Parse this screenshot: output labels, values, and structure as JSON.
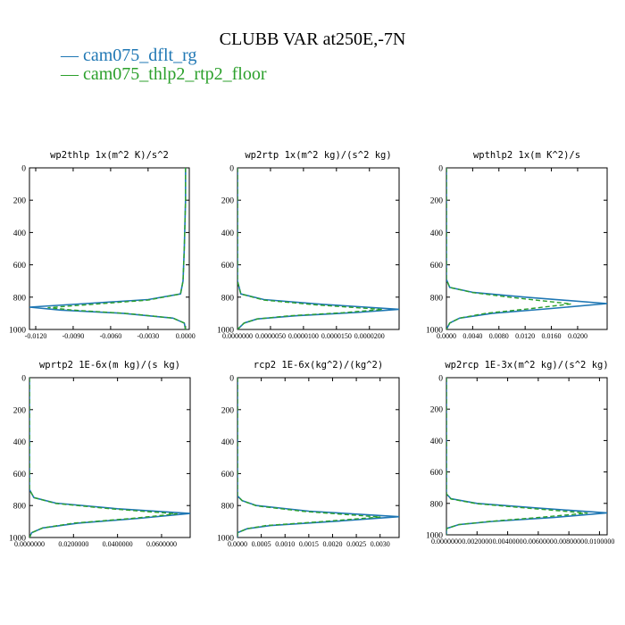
{
  "page": {
    "title": "CLUBB VAR at250E,-7N"
  },
  "legend": {
    "position": "top-left",
    "entries": [
      {
        "name": "cam075_dflt_rg",
        "color": "#1f77b4",
        "dash": "solid"
      },
      {
        "name": "cam075_thlp2_rtp2_floor",
        "color": "#2ca02c",
        "dash": "solid"
      }
    ]
  },
  "chart_data": [
    {
      "type": "line",
      "title": "wp2thlp  1x(m^2 K)/s^2",
      "ylim": [
        1000,
        0
      ],
      "yticks": [
        "0",
        "200",
        "400",
        "600",
        "800",
        "1000"
      ],
      "xlim": [
        -0.0125,
        0.0003
      ],
      "xticks": [
        -0.012,
        -0.009,
        -0.006,
        -0.003,
        0.0
      ],
      "xticklabels": [
        "-0.0120",
        "-0.0090",
        "-0.0060",
        "-0.0030",
        "0.0000"
      ],
      "series": [
        {
          "color": "#1f77b4",
          "dash": "solid",
          "points": [
            [
              0.0,
              0
            ],
            [
              0.0,
              200
            ],
            [
              -0.0001,
              500
            ],
            [
              -0.0002,
              700
            ],
            [
              -0.0004,
              780
            ],
            [
              -0.003,
              815
            ],
            [
              -0.008,
              840
            ],
            [
              -0.0125,
              862
            ],
            [
              -0.01,
              880
            ],
            [
              -0.005,
              900
            ],
            [
              -0.001,
              930
            ],
            [
              -0.0001,
              960
            ],
            [
              0.0,
              1000
            ]
          ]
        },
        {
          "color": "#2ca02c",
          "dash": "dash",
          "points": [
            [
              0.0,
              0
            ],
            [
              0.0,
              200
            ],
            [
              -0.0001,
              500
            ],
            [
              -0.0002,
              700
            ],
            [
              -0.0004,
              780
            ],
            [
              -0.003,
              818
            ],
            [
              -0.0075,
              845
            ],
            [
              -0.011,
              865
            ],
            [
              -0.009,
              880
            ],
            [
              -0.0045,
              902
            ],
            [
              -0.001,
              930
            ],
            [
              -0.0001,
              960
            ],
            [
              0.0,
              1000
            ]
          ]
        }
      ]
    },
    {
      "type": "line",
      "title": "wp2rtp  1x(m^2 kg)/(s^2 kg)",
      "ylim": [
        1000,
        0
      ],
      "yticks": [
        "0",
        "200",
        "400",
        "600",
        "800",
        "1000"
      ],
      "xlim": [
        0.0,
        2.45e-05
      ],
      "xticks": [
        0.0,
        5e-06,
        1e-05,
        1.5e-05,
        2e-05
      ],
      "xticklabels": [
        "0.0000000",
        "0.0000050",
        "0.0000100",
        "0.0000150",
        "0.0000200"
      ],
      "series": [
        {
          "color": "#1f77b4",
          "dash": "solid",
          "points": [
            [
              0.0,
              0
            ],
            [
              0.0,
              700
            ],
            [
              5e-07,
              780
            ],
            [
              4e-06,
              815
            ],
            [
              1.3e-05,
              845
            ],
            [
              2.45e-05,
              875
            ],
            [
              1.8e-05,
              895
            ],
            [
              9e-06,
              915
            ],
            [
              3e-06,
              935
            ],
            [
              1e-06,
              960
            ],
            [
              0.0,
              1000
            ]
          ]
        },
        {
          "color": "#2ca02c",
          "dash": "dash",
          "points": [
            [
              0.0,
              0
            ],
            [
              0.0,
              700
            ],
            [
              5e-07,
              780
            ],
            [
              4e-06,
              818
            ],
            [
              1.2e-05,
              848
            ],
            [
              2.2e-05,
              876
            ],
            [
              1.6e-05,
              896
            ],
            [
              8e-06,
              915
            ],
            [
              3e-06,
              935
            ],
            [
              1e-06,
              960
            ],
            [
              0.0,
              1000
            ]
          ]
        }
      ]
    },
    {
      "type": "line",
      "title": "wpthlp2  1x(m K^2)/s",
      "ylim": [
        1000,
        0
      ],
      "yticks": [
        "0",
        "200",
        "400",
        "600",
        "800",
        "1000"
      ],
      "xlim": [
        0.0,
        0.0245
      ],
      "xticks": [
        0.0,
        0.004,
        0.008,
        0.012,
        0.016,
        0.02
      ],
      "xticklabels": [
        "0.0000",
        "0.0040",
        "0.0080",
        "0.0120",
        "0.0160",
        "0.0200"
      ],
      "series": [
        {
          "color": "#1f77b4",
          "dash": "solid",
          "points": [
            [
              0.0,
              0
            ],
            [
              0.0,
              690
            ],
            [
              0.0005,
              740
            ],
            [
              0.004,
              770
            ],
            [
              0.012,
              800
            ],
            [
              0.0245,
              840
            ],
            [
              0.016,
              870
            ],
            [
              0.007,
              900
            ],
            [
              0.002,
              930
            ],
            [
              0.0005,
              960
            ],
            [
              0.0,
              1000
            ]
          ]
        },
        {
          "color": "#2ca02c",
          "dash": "dash",
          "points": [
            [
              0.0,
              0
            ],
            [
              0.0,
              690
            ],
            [
              0.0005,
              740
            ],
            [
              0.004,
              772
            ],
            [
              0.01,
              802
            ],
            [
              0.019,
              842
            ],
            [
              0.013,
              870
            ],
            [
              0.006,
              900
            ],
            [
              0.002,
              930
            ],
            [
              0.0005,
              960
            ],
            [
              0.0,
              1000
            ]
          ]
        }
      ]
    },
    {
      "type": "line",
      "title": "wprtp2  1E-6x(m kg)/(s kg)",
      "ylim": [
        1000,
        0
      ],
      "yticks": [
        "0",
        "200",
        "400",
        "600",
        "800",
        "1000"
      ],
      "xlim": [
        0.0,
        0.073
      ],
      "xticks": [
        0.0,
        0.02,
        0.04,
        0.06
      ],
      "xticklabels": [
        "0.0000000",
        "0.0200000",
        "0.0400000",
        "0.0600000"
      ],
      "series": [
        {
          "color": "#1f77b4",
          "dash": "solid",
          "points": [
            [
              0.0,
              0
            ],
            [
              0.0,
              700
            ],
            [
              0.002,
              750
            ],
            [
              0.012,
              785
            ],
            [
              0.04,
              820
            ],
            [
              0.073,
              850
            ],
            [
              0.05,
              880
            ],
            [
              0.022,
              910
            ],
            [
              0.006,
              940
            ],
            [
              0.001,
              970
            ],
            [
              0.0,
              1000
            ]
          ]
        },
        {
          "color": "#2ca02c",
          "dash": "dash",
          "points": [
            [
              0.0,
              0
            ],
            [
              0.0,
              700
            ],
            [
              0.002,
              750
            ],
            [
              0.012,
              787
            ],
            [
              0.038,
              822
            ],
            [
              0.067,
              852
            ],
            [
              0.047,
              880
            ],
            [
              0.02,
              910
            ],
            [
              0.006,
              940
            ],
            [
              0.001,
              970
            ],
            [
              0.0,
              1000
            ]
          ]
        }
      ]
    },
    {
      "type": "line",
      "title": "rcp2  1E-6x(kg^2)/(kg^2)",
      "ylim": [
        1000,
        0
      ],
      "yticks": [
        "0",
        "200",
        "400",
        "600",
        "800",
        "1000"
      ],
      "xlim": [
        0.0,
        0.0034
      ],
      "xticks": [
        0.0,
        0.0005,
        0.001,
        0.0015,
        0.002,
        0.0025,
        0.003
      ],
      "xticklabels": [
        "0.0000",
        "0.0005",
        "0.0010",
        "0.0015",
        "0.0020",
        "0.0025",
        "0.0030"
      ],
      "series": [
        {
          "color": "#1f77b4",
          "dash": "solid",
          "points": [
            [
              0.0,
              0
            ],
            [
              0.0,
              740
            ],
            [
              0.0001,
              770
            ],
            [
              0.0004,
              800
            ],
            [
              0.0015,
              835
            ],
            [
              0.0034,
              870
            ],
            [
              0.002,
              900
            ],
            [
              0.0007,
              925
            ],
            [
              0.0002,
              945
            ],
            [
              0.0,
              970
            ],
            [
              0.0,
              1000
            ]
          ]
        },
        {
          "color": "#2ca02c",
          "dash": "dash",
          "points": [
            [
              0.0,
              0
            ],
            [
              0.0,
              740
            ],
            [
              0.0001,
              770
            ],
            [
              0.0004,
              802
            ],
            [
              0.0014,
              837
            ],
            [
              0.003,
              872
            ],
            [
              0.0018,
              900
            ],
            [
              0.0006,
              925
            ],
            [
              0.0002,
              945
            ],
            [
              0.0,
              970
            ],
            [
              0.0,
              1000
            ]
          ]
        }
      ]
    },
    {
      "type": "line",
      "title": "wp2rcp  1E-3x(m^2 kg)/(s^2 kg)",
      "ylim": [
        1000,
        0
      ],
      "yticks": [
        "0",
        "200",
        "400",
        "600",
        "800",
        "1000"
      ],
      "xlim": [
        0.0,
        0.0105
      ],
      "xticks": [
        0.0,
        0.002,
        0.004,
        0.006,
        0.008,
        0.01
      ],
      "xticklabels": [
        "0.0000000",
        "0.0020000",
        "0.0040000",
        "0.0060000",
        "0.0080000",
        "0.0100000"
      ],
      "series": [
        {
          "color": "#1f77b4",
          "dash": "solid",
          "points": [
            [
              0.0,
              0
            ],
            [
              0.0,
              740
            ],
            [
              0.0003,
              770
            ],
            [
              0.002,
              800
            ],
            [
              0.006,
              830
            ],
            [
              0.0105,
              860
            ],
            [
              0.007,
              890
            ],
            [
              0.003,
              915
            ],
            [
              0.0008,
              935
            ],
            [
              0.0,
              960
            ],
            [
              0.0,
              1000
            ]
          ]
        },
        {
          "color": "#2ca02c",
          "dash": "dash",
          "points": [
            [
              0.0,
              0
            ],
            [
              0.0,
              740
            ],
            [
              0.0003,
              772
            ],
            [
              0.002,
              802
            ],
            [
              0.0055,
              832
            ],
            [
              0.0092,
              862
            ],
            [
              0.006,
              890
            ],
            [
              0.0028,
              915
            ],
            [
              0.0008,
              935
            ],
            [
              0.0,
              960
            ],
            [
              0.0,
              1000
            ]
          ]
        }
      ]
    }
  ]
}
